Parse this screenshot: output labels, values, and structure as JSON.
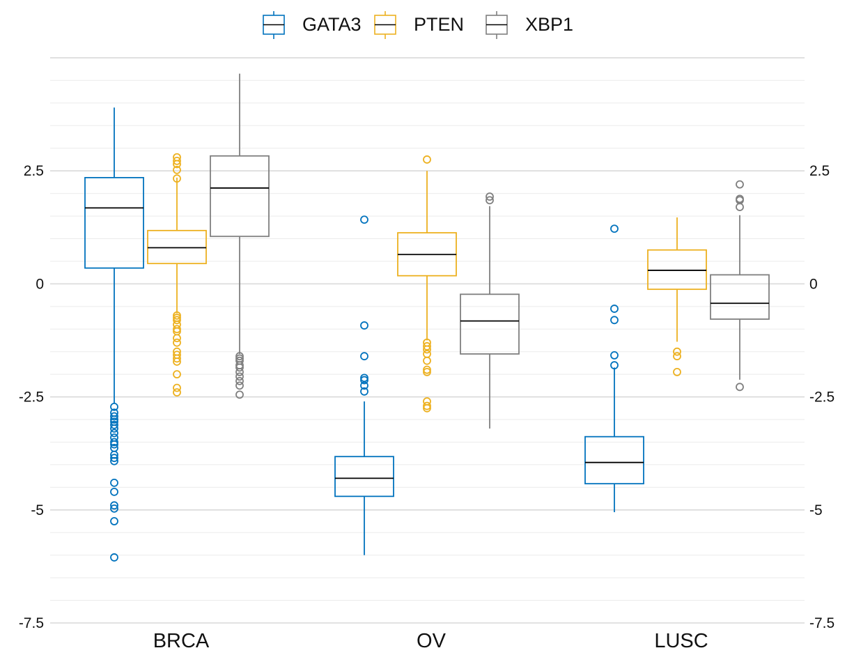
{
  "chart_data": {
    "type": "boxplot",
    "categories": [
      "BRCA",
      "OV",
      "LUSC"
    ],
    "ylim": [
      -7.5,
      5.2
    ],
    "yticks": [
      {
        "value": 2.5,
        "label": "2.5"
      },
      {
        "value": 0,
        "label": "0"
      },
      {
        "value": -2.5,
        "label": "-2.5"
      },
      {
        "value": -5,
        "label": "-5"
      },
      {
        "value": -7.5,
        "label": "-7.5"
      }
    ],
    "grid": true,
    "legend_position": "top",
    "colors": {
      "GATA3": "#0072BD",
      "PTEN": "#EDB120",
      "XBP1": "#7F7F7F",
      "median": "#000000",
      "grid": "#DCDCDC"
    },
    "series": [
      {
        "name": "GATA3",
        "boxes": [
          {
            "category": "BRCA",
            "lower_whisker": -2.65,
            "q1": 0.35,
            "median": 1.68,
            "q3": 2.35,
            "upper_whisker": 3.9,
            "outliers": [
              -2.72,
              -2.85,
              -2.93,
              -3.0,
              -3.05,
              -3.12,
              -3.2,
              -3.3,
              -3.4,
              -3.5,
              -3.55,
              -3.63,
              -3.78,
              -3.85,
              -3.92,
              -4.4,
              -4.6,
              -4.9,
              -4.97,
              -5.25,
              -6.05
            ]
          },
          {
            "category": "OV",
            "lower_whisker": -6.0,
            "q1": -4.7,
            "median": -4.3,
            "q3": -3.82,
            "upper_whisker": -2.6,
            "outliers": [
              1.42,
              -0.92,
              -1.6,
              -2.08,
              -2.13,
              -2.25,
              -2.38
            ]
          },
          {
            "category": "LUSC",
            "lower_whisker": -5.05,
            "q1": -4.42,
            "median": -3.95,
            "q3": -3.38,
            "upper_whisker": -1.85,
            "outliers": [
              1.22,
              -0.55,
              -0.8,
              -1.58,
              -1.8
            ]
          }
        ]
      },
      {
        "name": "PTEN",
        "boxes": [
          {
            "category": "BRCA",
            "lower_whisker": -0.65,
            "q1": 0.45,
            "median": 0.8,
            "q3": 1.18,
            "upper_whisker": 2.35,
            "outliers": [
              2.8,
              2.72,
              2.65,
              2.52,
              2.33,
              -0.7,
              -0.75,
              -0.8,
              -0.9,
              -1.0,
              -1.05,
              -1.2,
              -1.3,
              -1.5,
              -1.57,
              -1.65,
              -1.72,
              -2.0,
              -2.3,
              -2.4
            ]
          },
          {
            "category": "OV",
            "lower_whisker": -1.25,
            "q1": 0.18,
            "median": 0.65,
            "q3": 1.13,
            "upper_whisker": 2.5,
            "outliers": [
              2.75,
              -1.3,
              -1.38,
              -1.45,
              -1.55,
              -1.7,
              -1.9,
              -1.95,
              -2.6,
              -2.7,
              -2.75
            ]
          },
          {
            "category": "LUSC",
            "lower_whisker": -1.28,
            "q1": -0.12,
            "median": 0.3,
            "q3": 0.75,
            "upper_whisker": 1.47,
            "outliers": [
              -1.5,
              -1.6,
              -1.95
            ]
          }
        ]
      },
      {
        "name": "XBP1",
        "boxes": [
          {
            "category": "BRCA",
            "lower_whisker": -1.55,
            "q1": 1.05,
            "median": 2.12,
            "q3": 2.83,
            "upper_whisker": 4.65,
            "outliers": [
              -1.6,
              -1.65,
              -1.7,
              -1.8,
              -1.85,
              -1.95,
              -2.05,
              -2.15,
              -2.25,
              -2.45
            ]
          },
          {
            "category": "OV",
            "lower_whisker": -3.2,
            "q1": -1.55,
            "median": -0.82,
            "q3": -0.23,
            "upper_whisker": 1.72,
            "outliers": [
              1.93,
              1.85
            ]
          },
          {
            "category": "LUSC",
            "lower_whisker": -2.12,
            "q1": -0.78,
            "median": -0.43,
            "q3": 0.2,
            "upper_whisker": 1.52,
            "outliers": [
              2.2,
              1.88,
              1.85,
              1.7,
              -2.28
            ]
          }
        ]
      }
    ]
  }
}
